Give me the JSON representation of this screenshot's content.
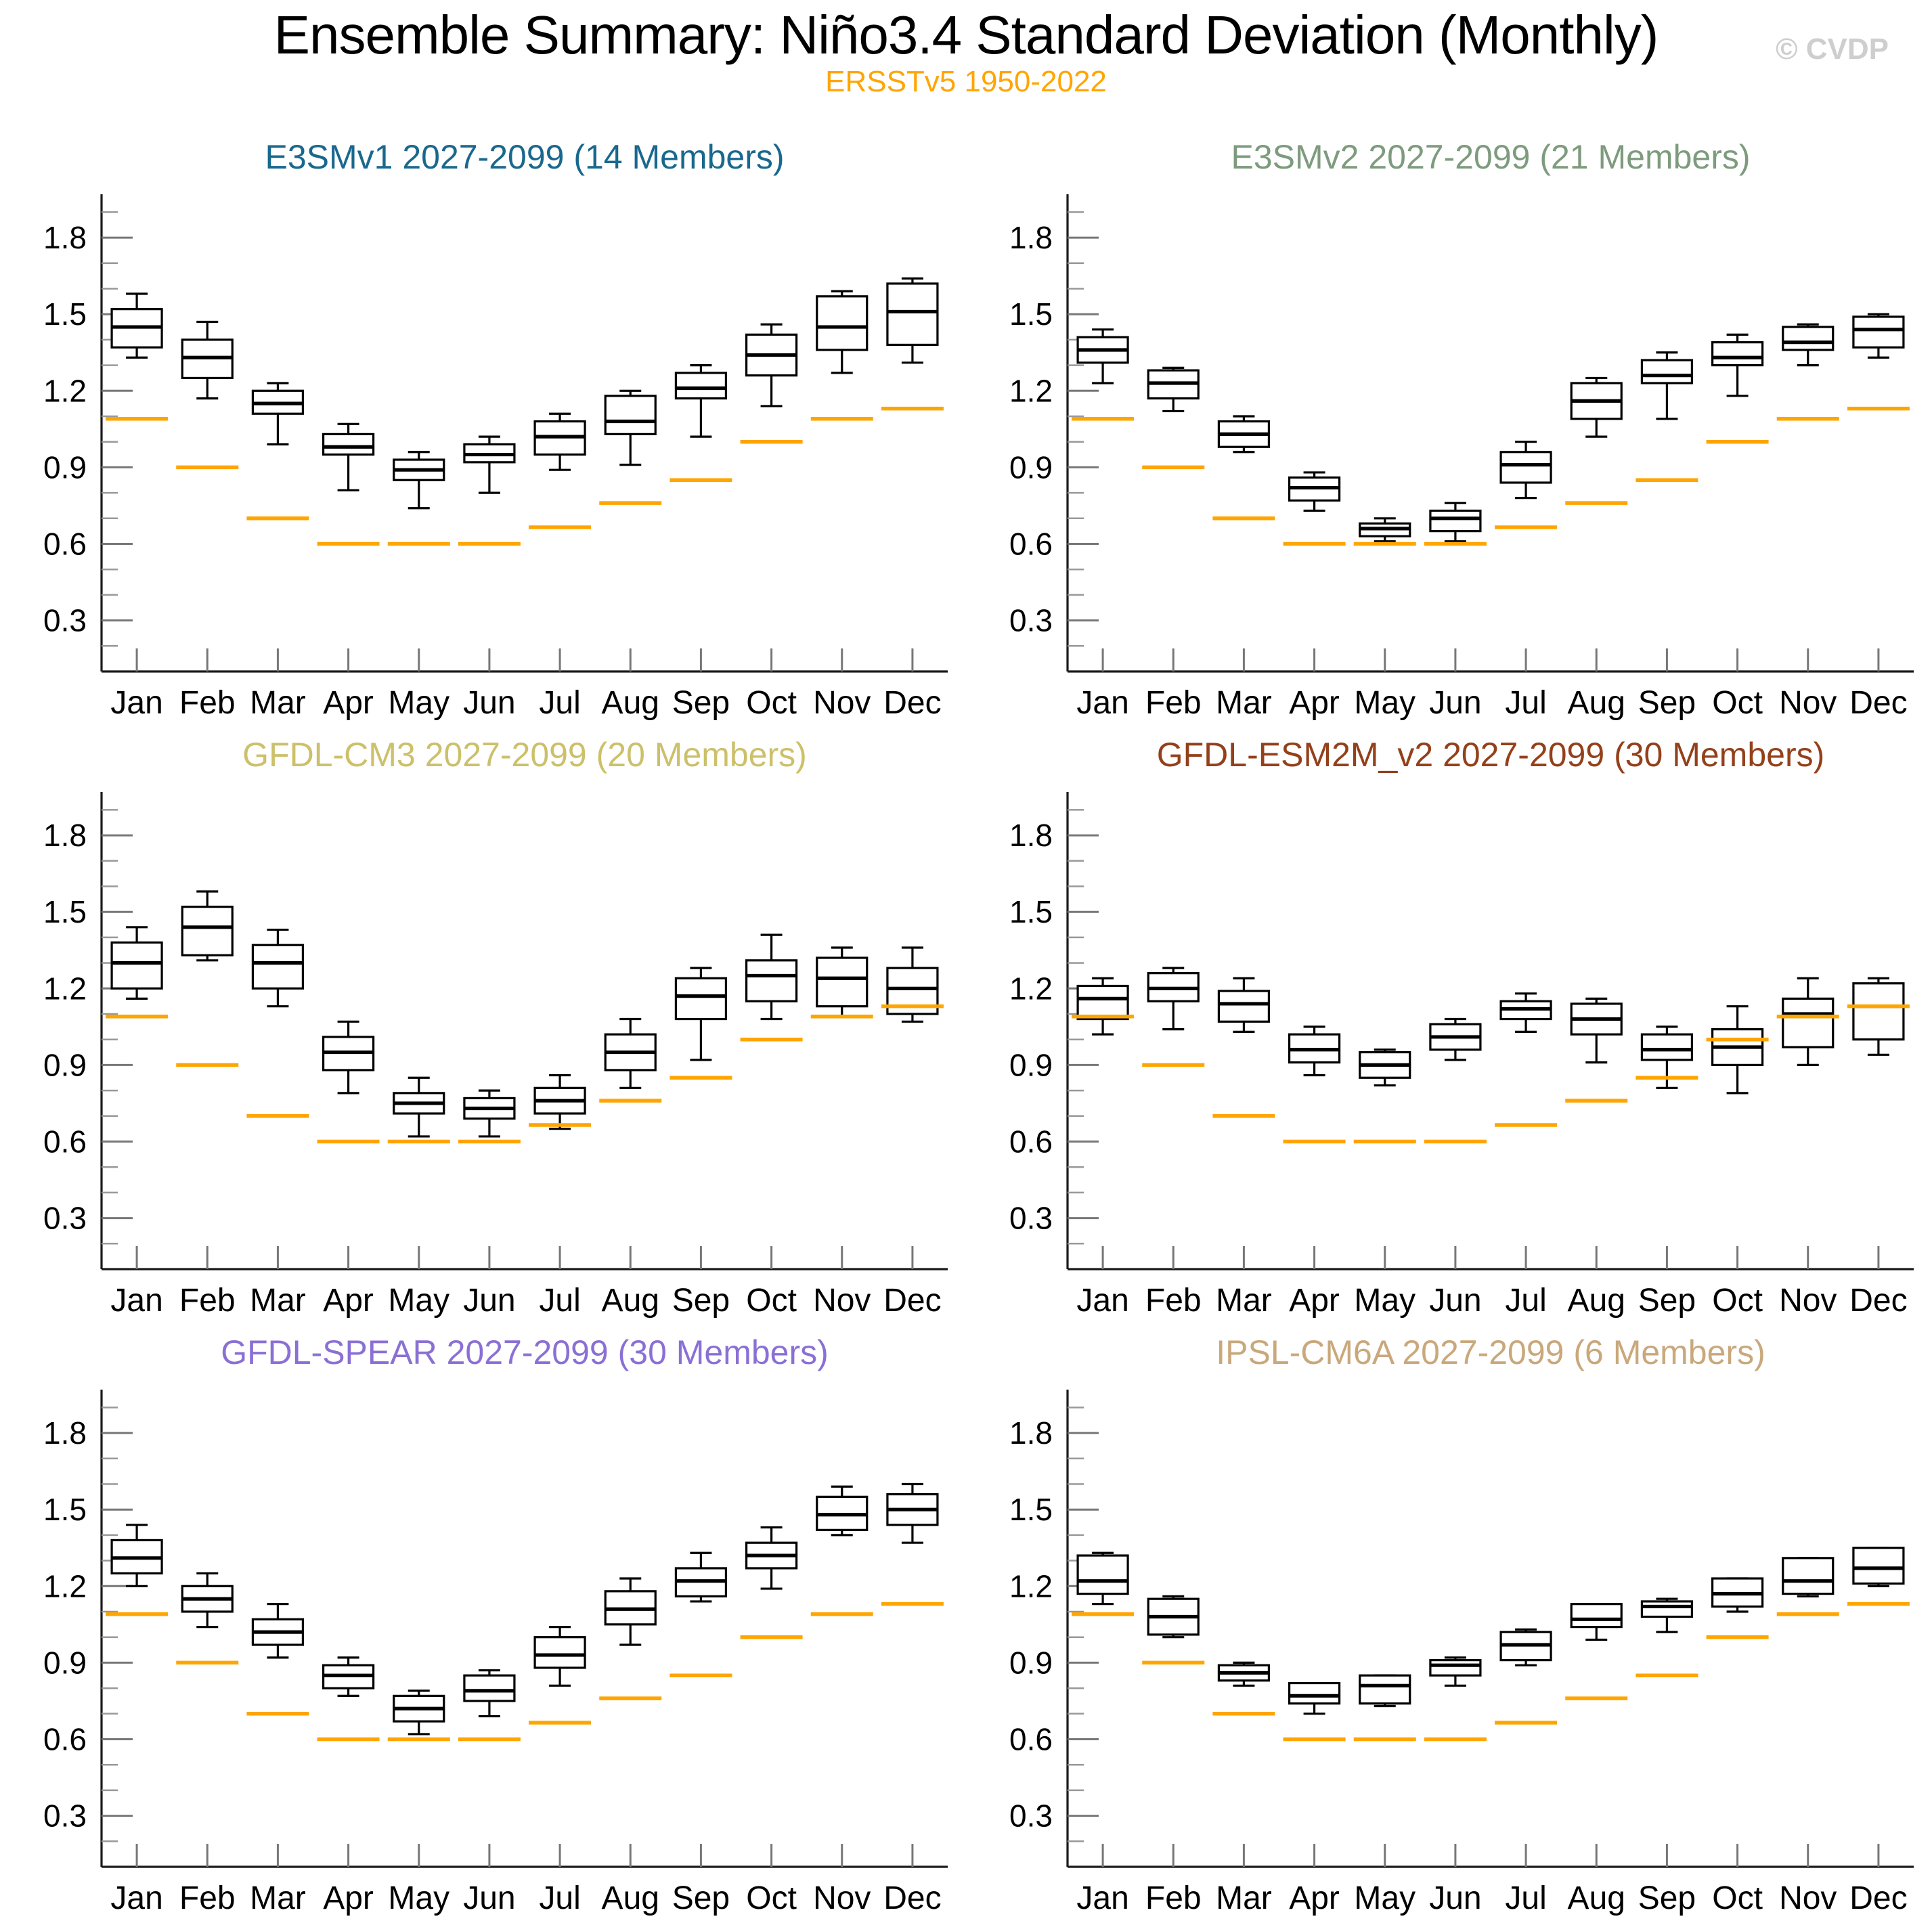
{
  "header": {
    "title": "Ensemble Summary: Niño3.4 Standard Deviation (Monthly)",
    "subtitle": "ERSSTv5 1950-2022",
    "watermark": "© CVDP"
  },
  "colors": {
    "observation": "#FFA500",
    "box_stroke": "#000000",
    "axis": "#1a1a1a",
    "tick_major": "#777777",
    "tick_minor": "#999999"
  },
  "chart_data": [
    {
      "type": "boxplot",
      "title": "E3SMv1 2027-2099 (14 Members)",
      "title_color": "#19688E",
      "categories": [
        "Jan",
        "Feb",
        "Mar",
        "Apr",
        "May",
        "Jun",
        "Jul",
        "Aug",
        "Sep",
        "Oct",
        "Nov",
        "Dec"
      ],
      "ylim": [
        0.1,
        1.97
      ],
      "yticks_major": [
        0.3,
        0.6,
        0.9,
        1.2,
        1.5,
        1.8
      ],
      "stats_order": [
        "low_whisker",
        "q1",
        "median",
        "q3",
        "high_whisker"
      ],
      "boxes": [
        [
          1.33,
          1.37,
          1.45,
          1.52,
          1.58
        ],
        [
          1.17,
          1.25,
          1.33,
          1.4,
          1.47
        ],
        [
          0.99,
          1.11,
          1.15,
          1.2,
          1.23
        ],
        [
          0.81,
          0.95,
          0.98,
          1.03,
          1.07
        ],
        [
          0.74,
          0.85,
          0.89,
          0.93,
          0.96
        ],
        [
          0.8,
          0.92,
          0.95,
          0.99,
          1.02
        ],
        [
          0.89,
          0.95,
          1.02,
          1.08,
          1.11
        ],
        [
          0.91,
          1.03,
          1.08,
          1.18,
          1.2
        ],
        [
          1.02,
          1.17,
          1.21,
          1.27,
          1.3
        ],
        [
          1.14,
          1.26,
          1.34,
          1.42,
          1.46
        ],
        [
          1.27,
          1.36,
          1.45,
          1.57,
          1.59
        ],
        [
          1.31,
          1.38,
          1.51,
          1.62,
          1.64
        ]
      ],
      "observation_label": "ERSSTv5 1950-2022",
      "observation_values": [
        1.09,
        0.9,
        0.7,
        0.6,
        0.6,
        0.6,
        0.665,
        0.76,
        0.85,
        1.0,
        1.09,
        1.13
      ]
    },
    {
      "type": "boxplot",
      "title": "E3SMv2 2027-2099 (21 Members)",
      "title_color": "#7D9B7D",
      "categories": [
        "Jan",
        "Feb",
        "Mar",
        "Apr",
        "May",
        "Jun",
        "Jul",
        "Aug",
        "Sep",
        "Oct",
        "Nov",
        "Dec"
      ],
      "ylim": [
        0.1,
        1.97
      ],
      "yticks_major": [
        0.3,
        0.6,
        0.9,
        1.2,
        1.5,
        1.8
      ],
      "stats_order": [
        "low_whisker",
        "q1",
        "median",
        "q3",
        "high_whisker"
      ],
      "boxes": [
        [
          1.23,
          1.31,
          1.36,
          1.41,
          1.44
        ],
        [
          1.12,
          1.17,
          1.23,
          1.28,
          1.29
        ],
        [
          0.96,
          0.98,
          1.03,
          1.08,
          1.1
        ],
        [
          0.73,
          0.77,
          0.82,
          0.86,
          0.88
        ],
        [
          0.61,
          0.63,
          0.66,
          0.68,
          0.7
        ],
        [
          0.61,
          0.65,
          0.7,
          0.73,
          0.76
        ],
        [
          0.78,
          0.84,
          0.91,
          0.96,
          1.0
        ],
        [
          1.02,
          1.09,
          1.16,
          1.23,
          1.25
        ],
        [
          1.09,
          1.23,
          1.26,
          1.32,
          1.35
        ],
        [
          1.18,
          1.3,
          1.33,
          1.39,
          1.42
        ],
        [
          1.3,
          1.36,
          1.39,
          1.45,
          1.46
        ],
        [
          1.33,
          1.37,
          1.44,
          1.49,
          1.5
        ]
      ],
      "observation_label": "ERSSTv5 1950-2022",
      "observation_values": [
        1.09,
        0.9,
        0.7,
        0.6,
        0.6,
        0.6,
        0.665,
        0.76,
        0.85,
        1.0,
        1.09,
        1.13
      ]
    },
    {
      "type": "boxplot",
      "title": "GFDL-CM3 2027-2099 (20 Members)",
      "title_color": "#CCC06A",
      "categories": [
        "Jan",
        "Feb",
        "Mar",
        "Apr",
        "May",
        "Jun",
        "Jul",
        "Aug",
        "Sep",
        "Oct",
        "Nov",
        "Dec"
      ],
      "ylim": [
        0.1,
        1.97
      ],
      "yticks_major": [
        0.3,
        0.6,
        0.9,
        1.2,
        1.5,
        1.8
      ],
      "stats_order": [
        "low_whisker",
        "q1",
        "median",
        "q3",
        "high_whisker"
      ],
      "boxes": [
        [
          1.16,
          1.2,
          1.3,
          1.38,
          1.44
        ],
        [
          1.31,
          1.33,
          1.44,
          1.52,
          1.58
        ],
        [
          1.13,
          1.2,
          1.3,
          1.37,
          1.43
        ],
        [
          0.79,
          0.88,
          0.95,
          1.01,
          1.07
        ],
        [
          0.62,
          0.71,
          0.75,
          0.79,
          0.85
        ],
        [
          0.62,
          0.69,
          0.73,
          0.77,
          0.8
        ],
        [
          0.65,
          0.71,
          0.76,
          0.81,
          0.86
        ],
        [
          0.81,
          0.88,
          0.95,
          1.02,
          1.08
        ],
        [
          0.92,
          1.08,
          1.17,
          1.24,
          1.28
        ],
        [
          1.08,
          1.15,
          1.25,
          1.31,
          1.41
        ],
        [
          1.09,
          1.13,
          1.24,
          1.32,
          1.36
        ],
        [
          1.07,
          1.1,
          1.2,
          1.28,
          1.36
        ]
      ],
      "observation_label": "ERSSTv5 1950-2022",
      "observation_values": [
        1.09,
        0.9,
        0.7,
        0.6,
        0.6,
        0.6,
        0.665,
        0.76,
        0.85,
        1.0,
        1.09,
        1.13
      ]
    },
    {
      "type": "boxplot",
      "title": "GFDL-ESM2M_v2 2027-2099 (30 Members)",
      "title_color": "#94401A",
      "categories": [
        "Jan",
        "Feb",
        "Mar",
        "Apr",
        "May",
        "Jun",
        "Jul",
        "Aug",
        "Sep",
        "Oct",
        "Nov",
        "Dec"
      ],
      "ylim": [
        0.1,
        1.97
      ],
      "yticks_major": [
        0.3,
        0.6,
        0.9,
        1.2,
        1.5,
        1.8
      ],
      "stats_order": [
        "low_whisker",
        "q1",
        "median",
        "q3",
        "high_whisker"
      ],
      "boxes": [
        [
          1.02,
          1.08,
          1.16,
          1.21,
          1.24
        ],
        [
          1.04,
          1.15,
          1.2,
          1.26,
          1.28
        ],
        [
          1.03,
          1.07,
          1.14,
          1.19,
          1.24
        ],
        [
          0.86,
          0.91,
          0.96,
          1.02,
          1.05
        ],
        [
          0.82,
          0.85,
          0.9,
          0.95,
          0.96
        ],
        [
          0.92,
          0.96,
          1.01,
          1.06,
          1.08
        ],
        [
          1.03,
          1.08,
          1.12,
          1.15,
          1.18
        ],
        [
          0.91,
          1.02,
          1.08,
          1.14,
          1.16
        ],
        [
          0.81,
          0.92,
          0.96,
          1.02,
          1.05
        ],
        [
          0.79,
          0.9,
          0.97,
          1.04,
          1.13
        ],
        [
          0.9,
          0.97,
          1.1,
          1.16,
          1.24
        ],
        [
          0.94,
          1.0,
          1.13,
          1.22,
          1.24
        ]
      ],
      "observation_label": "ERSSTv5 1950-2022",
      "observation_values": [
        1.09,
        0.9,
        0.7,
        0.6,
        0.6,
        0.6,
        0.665,
        0.76,
        0.85,
        1.0,
        1.09,
        1.13
      ]
    },
    {
      "type": "boxplot",
      "title": "GFDL-SPEAR 2027-2099 (30 Members)",
      "title_color": "#8A70D5",
      "categories": [
        "Jan",
        "Feb",
        "Mar",
        "Apr",
        "May",
        "Jun",
        "Jul",
        "Aug",
        "Sep",
        "Oct",
        "Nov",
        "Dec"
      ],
      "ylim": [
        0.1,
        1.97
      ],
      "yticks_major": [
        0.3,
        0.6,
        0.9,
        1.2,
        1.5,
        1.8
      ],
      "stats_order": [
        "low_whisker",
        "q1",
        "median",
        "q3",
        "high_whisker"
      ],
      "boxes": [
        [
          1.2,
          1.25,
          1.31,
          1.38,
          1.44
        ],
        [
          1.04,
          1.1,
          1.15,
          1.2,
          1.25
        ],
        [
          0.92,
          0.97,
          1.02,
          1.07,
          1.13
        ],
        [
          0.77,
          0.8,
          0.85,
          0.89,
          0.92
        ],
        [
          0.62,
          0.67,
          0.72,
          0.77,
          0.79
        ],
        [
          0.69,
          0.75,
          0.79,
          0.85,
          0.87
        ],
        [
          0.81,
          0.88,
          0.93,
          1.0,
          1.04
        ],
        [
          0.97,
          1.05,
          1.11,
          1.18,
          1.23
        ],
        [
          1.14,
          1.16,
          1.22,
          1.27,
          1.33
        ],
        [
          1.19,
          1.27,
          1.32,
          1.37,
          1.43
        ],
        [
          1.4,
          1.42,
          1.48,
          1.55,
          1.59
        ],
        [
          1.37,
          1.44,
          1.5,
          1.56,
          1.6
        ]
      ],
      "observation_label": "ERSSTv5 1950-2022",
      "observation_values": [
        1.09,
        0.9,
        0.7,
        0.6,
        0.6,
        0.6,
        0.665,
        0.76,
        0.85,
        1.0,
        1.09,
        1.13
      ]
    },
    {
      "type": "boxplot",
      "title": "IPSL-CM6A 2027-2099 (6 Members)",
      "title_color": "#C9A87C",
      "categories": [
        "Jan",
        "Feb",
        "Mar",
        "Apr",
        "May",
        "Jun",
        "Jul",
        "Aug",
        "Sep",
        "Oct",
        "Nov",
        "Dec"
      ],
      "ylim": [
        0.1,
        1.97
      ],
      "yticks_major": [
        0.3,
        0.6,
        0.9,
        1.2,
        1.5,
        1.8
      ],
      "stats_order": [
        "low_whisker",
        "q1",
        "median",
        "q3",
        "high_whisker"
      ],
      "boxes": [
        [
          1.13,
          1.17,
          1.22,
          1.32,
          1.33
        ],
        [
          1.0,
          1.01,
          1.08,
          1.15,
          1.16
        ],
        [
          0.81,
          0.83,
          0.86,
          0.89,
          0.9
        ],
        [
          0.7,
          0.74,
          0.77,
          0.82,
          0.82
        ],
        [
          0.73,
          0.74,
          0.81,
          0.85,
          0.85
        ],
        [
          0.81,
          0.85,
          0.89,
          0.91,
          0.92
        ],
        [
          0.89,
          0.91,
          0.97,
          1.02,
          1.03
        ],
        [
          0.99,
          1.04,
          1.07,
          1.13,
          1.13
        ],
        [
          1.02,
          1.08,
          1.12,
          1.14,
          1.15
        ],
        [
          1.1,
          1.12,
          1.17,
          1.23,
          1.23
        ],
        [
          1.16,
          1.17,
          1.22,
          1.31,
          1.31
        ],
        [
          1.2,
          1.21,
          1.27,
          1.35,
          1.35
        ]
      ],
      "observation_label": "ERSSTv5 1950-2022",
      "observation_values": [
        1.09,
        0.9,
        0.7,
        0.6,
        0.6,
        0.6,
        0.665,
        0.76,
        0.85,
        1.0,
        1.09,
        1.13
      ]
    }
  ]
}
